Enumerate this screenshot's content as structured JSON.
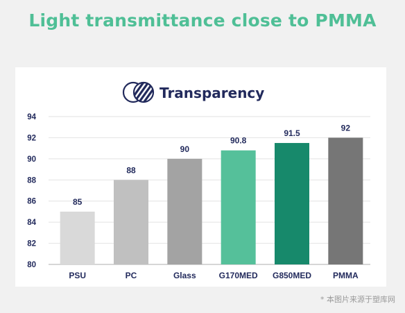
{
  "headline": "Light transmittance close to PMMA",
  "watermark": "* 本图片来源于塑库网",
  "chart_data": {
    "type": "bar",
    "title": "Transparency",
    "categories": [
      "PSU",
      "PC",
      "Glass",
      "G170MED",
      "G850MED",
      "PMMA"
    ],
    "values": [
      85,
      88,
      90,
      90.8,
      91.5,
      92
    ],
    "data_labels": [
      "85",
      "88",
      "90",
      "90.8",
      "91.5",
      "92"
    ],
    "colors": [
      "#d9d9d9",
      "#c0c0c0",
      "#a3a3a3",
      "#55c09a",
      "#17896b",
      "#767676"
    ],
    "ylim": [
      80,
      94
    ],
    "yticks": [
      80,
      82,
      84,
      86,
      88,
      90,
      92,
      94
    ],
    "xlabel": "",
    "ylabel": "",
    "grid": true,
    "legend": "none"
  }
}
